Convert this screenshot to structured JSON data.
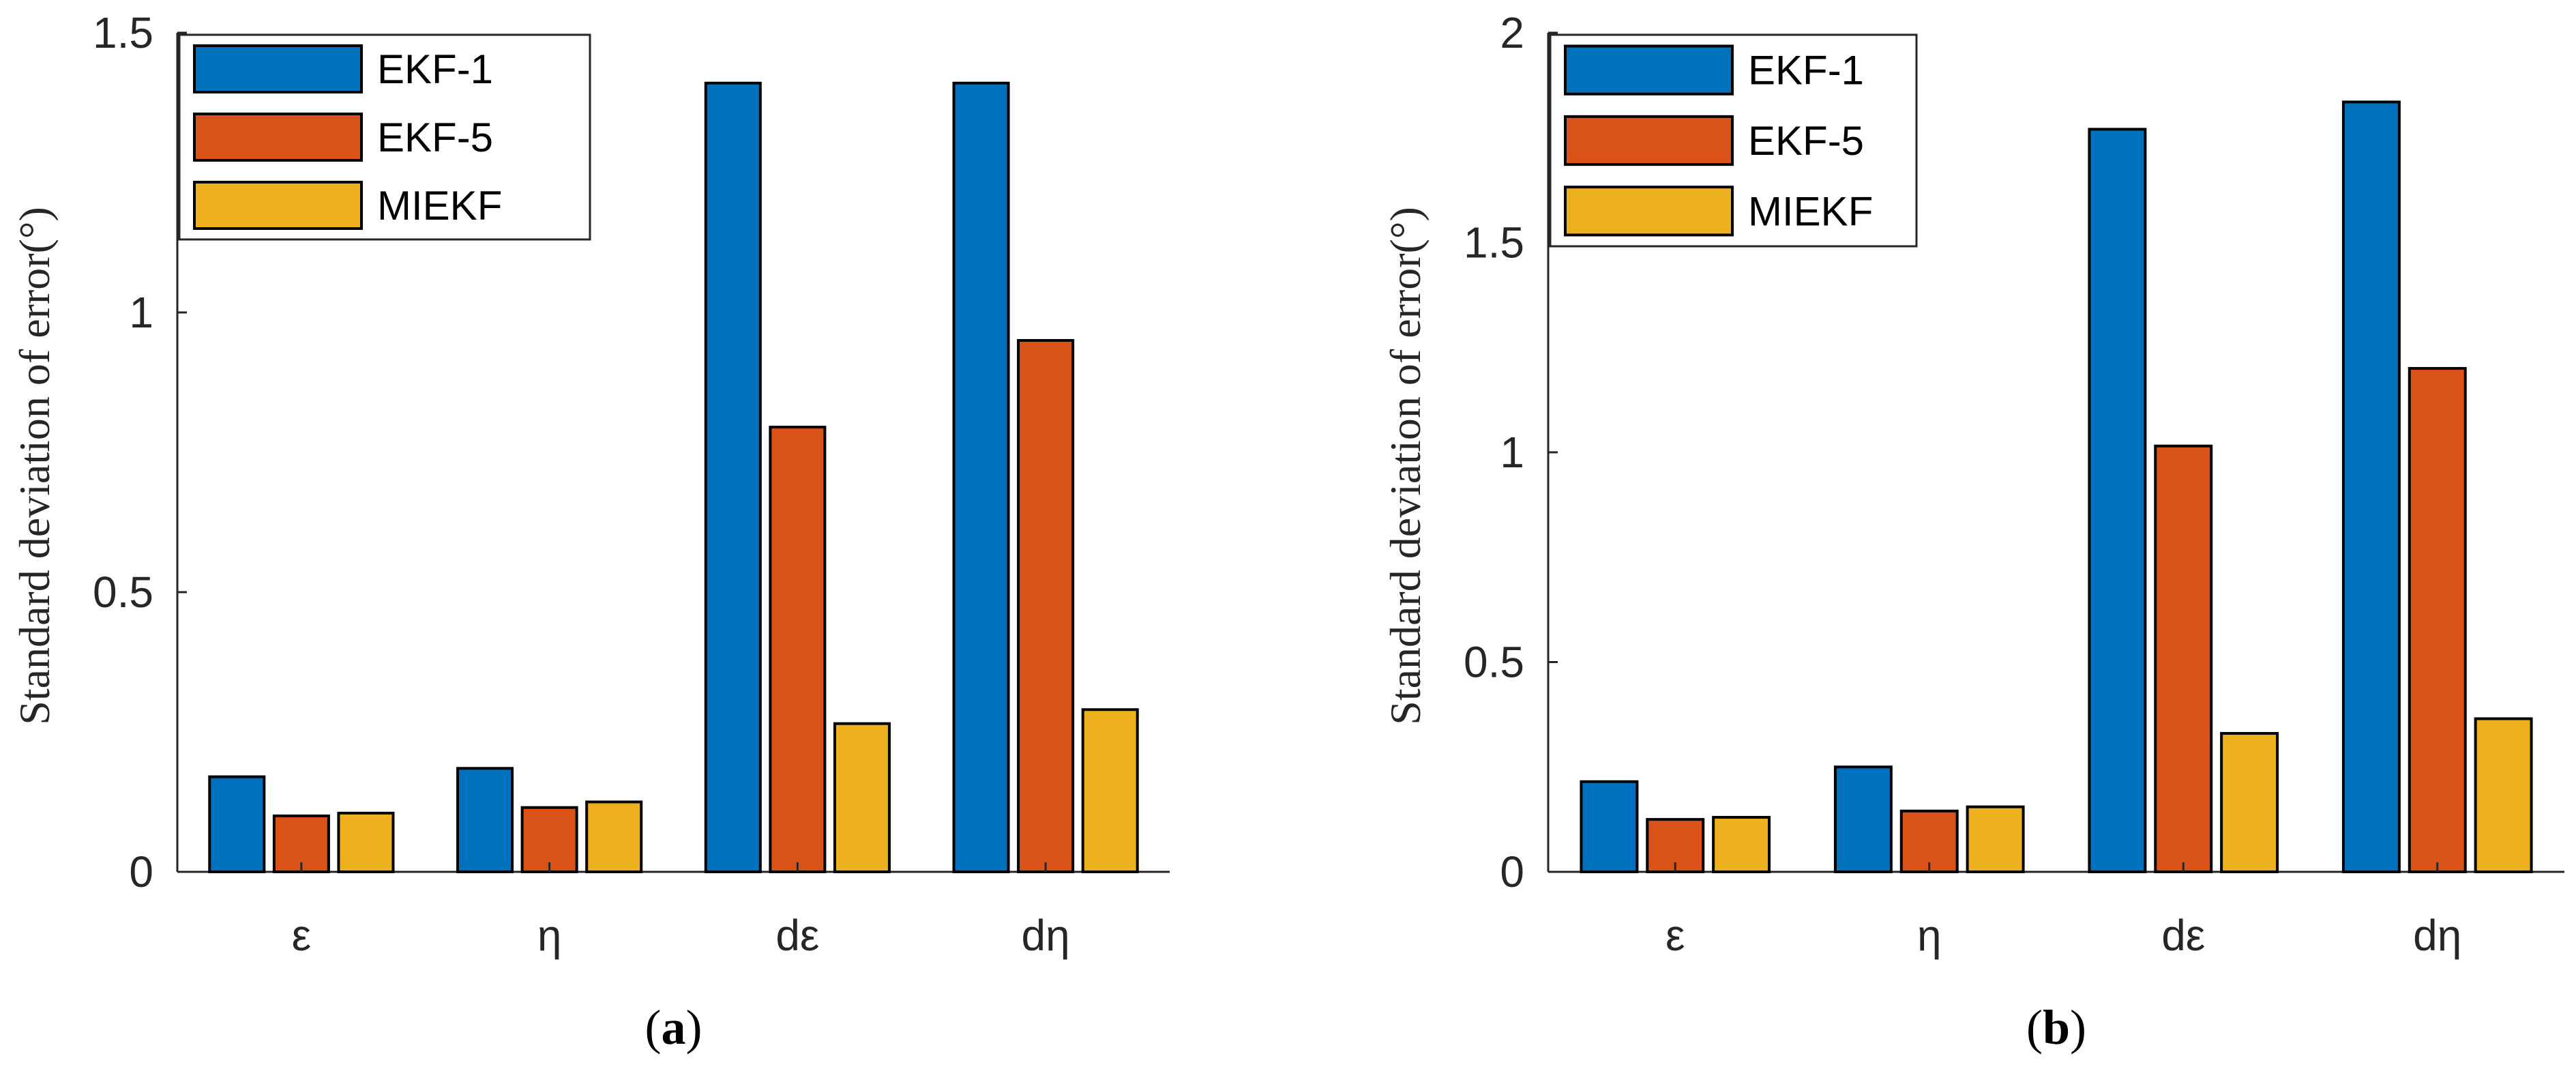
{
  "chart_data": [
    {
      "type": "bar",
      "panel": "a",
      "caption_letter": "a",
      "categories": [
        "ε",
        "η",
        "dε",
        "dη"
      ],
      "series": [
        {
          "name": "EKF-1",
          "values": [
            0.17,
            0.185,
            1.41,
            1.41
          ]
        },
        {
          "name": "EKF-5",
          "values": [
            0.1,
            0.115,
            0.795,
            0.95
          ]
        },
        {
          "name": "MIEKF",
          "values": [
            0.105,
            0.125,
            0.265,
            0.29
          ]
        }
      ],
      "ylabel": "Standard deviation of error(°)",
      "xlabel": "",
      "ylim": [
        0,
        1.5
      ],
      "yticks": [
        0,
        0.5,
        1,
        1.5
      ],
      "ytick_labels": [
        "0",
        "0.5",
        "1",
        "1.5"
      ],
      "legend_position": "top-left",
      "grid": false
    },
    {
      "type": "bar",
      "panel": "b",
      "caption_letter": "b",
      "categories": [
        "ε",
        "η",
        "dε",
        "dη"
      ],
      "series": [
        {
          "name": "EKF-1",
          "values": [
            0.215,
            0.25,
            1.77,
            1.835
          ]
        },
        {
          "name": "EKF-5",
          "values": [
            0.125,
            0.145,
            1.015,
            1.2
          ]
        },
        {
          "name": "MIEKF",
          "values": [
            0.13,
            0.155,
            0.33,
            0.365
          ]
        }
      ],
      "ylabel": "Standard deviation of error(°)",
      "xlabel": "",
      "ylim": [
        0,
        2
      ],
      "yticks": [
        0,
        0.5,
        1,
        1.5,
        2
      ],
      "ytick_labels": [
        "0",
        "0.5",
        "1",
        "1.5",
        "2"
      ],
      "legend_position": "top-left",
      "grid": false
    }
  ],
  "colors": {
    "EKF-1": "#0072BD",
    "EKF-5": "#D95319",
    "MIEKF": "#EDB120"
  }
}
